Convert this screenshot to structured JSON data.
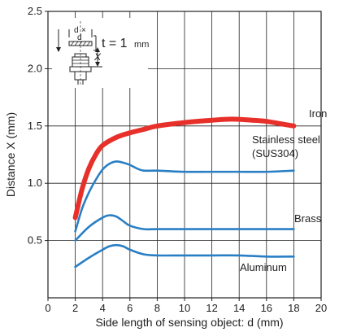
{
  "chart_data": {
    "type": "line",
    "title": "",
    "xlabel": "Side length of sensing object: d (mm)",
    "ylabel": "Distance X (mm)",
    "xlim": [
      0,
      20
    ],
    "ylim": [
      0,
      2.5
    ],
    "x_ticks": [
      0,
      2,
      4,
      6,
      8,
      10,
      12,
      14,
      16,
      18,
      20
    ],
    "y_ticks": [
      0.5,
      1.0,
      1.5,
      2.0,
      2.5
    ],
    "x_tick_labels": [
      "0",
      "2",
      "4",
      "6",
      "8",
      "10",
      "12",
      "14",
      "16",
      "18",
      "20"
    ],
    "y_tick_labels": [
      "0.5",
      "1.0",
      "1.5",
      "2.0",
      "2.5"
    ],
    "grid": true,
    "series": [
      {
        "name": "Iron",
        "color": "#e8302a",
        "x": [
          2,
          2.5,
          3,
          3.5,
          4,
          5,
          6,
          7,
          8,
          10,
          12,
          13.5,
          15,
          16,
          17,
          18
        ],
        "y": [
          0.7,
          0.95,
          1.13,
          1.25,
          1.33,
          1.4,
          1.44,
          1.47,
          1.5,
          1.53,
          1.55,
          1.56,
          1.55,
          1.54,
          1.52,
          1.5
        ]
      },
      {
        "name": "Stainless steel (SUS304)",
        "color": "#2a7fc4",
        "x": [
          2,
          2.5,
          3,
          3.5,
          4,
          4.5,
          5,
          5.5,
          6,
          6.5,
          7,
          8,
          10,
          12,
          14,
          16,
          18
        ],
        "y": [
          0.58,
          0.78,
          0.92,
          1.03,
          1.12,
          1.17,
          1.19,
          1.18,
          1.16,
          1.13,
          1.11,
          1.11,
          1.1,
          1.1,
          1.1,
          1.1,
          1.11
        ]
      },
      {
        "name": "Brass",
        "color": "#2a7fc4",
        "x": [
          2,
          3,
          4,
          4.5,
          5,
          5.5,
          6,
          7,
          8,
          10,
          12,
          14,
          16,
          18
        ],
        "y": [
          0.5,
          0.62,
          0.7,
          0.72,
          0.71,
          0.67,
          0.63,
          0.6,
          0.6,
          0.6,
          0.6,
          0.6,
          0.6,
          0.6
        ]
      },
      {
        "name": "Aluminum",
        "color": "#2a7fc4",
        "x": [
          2,
          3,
          4,
          4.5,
          5,
          5.5,
          6,
          7,
          8,
          10,
          12,
          14,
          16,
          18
        ],
        "y": [
          0.27,
          0.35,
          0.42,
          0.45,
          0.46,
          0.45,
          0.42,
          0.38,
          0.37,
          0.37,
          0.37,
          0.37,
          0.36,
          0.36
        ]
      }
    ],
    "series_labels": [
      {
        "text": "Iron",
        "series": "Iron"
      },
      {
        "text": "Stainless steel",
        "series": "Stainless steel (SUS304)"
      },
      {
        "text": "(SUS304)",
        "series": "Stainless steel (SUS304)"
      },
      {
        "text": "Brass",
        "series": "Brass"
      },
      {
        "text": "Aluminum",
        "series": "Aluminum"
      }
    ],
    "inset": {
      "label_d": "d",
      "label_x_mark": "×",
      "label_d2": "d",
      "label_X": "X",
      "thickness_text": "t = 1",
      "thickness_unit": "mm"
    }
  }
}
